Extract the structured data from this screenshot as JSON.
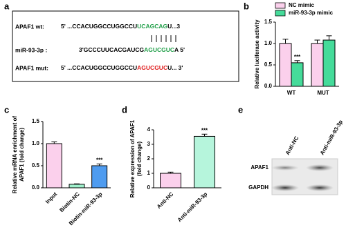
{
  "panels": {
    "a": {
      "label": "a",
      "rows": [
        {
          "name": "APAF1 wt:",
          "segments": [
            {
              "text": "5' ...CCACUGGCCUGGCCU",
              "color": "#000000"
            },
            {
              "text": "UCAGCAG",
              "color": "#22a04a"
            },
            {
              "text": "U...3",
              "color": "#000000"
            }
          ]
        },
        {
          "name": "miR-93-3p :",
          "segments": [
            {
              "text": "3'GCCCUUCACGAUCG",
              "color": "#000000"
            },
            {
              "text": "AGUCGUC",
              "color": "#22a04a"
            },
            {
              "text": "A 5'",
              "color": "#000000"
            }
          ]
        },
        {
          "name": "APAF1 mut:",
          "segments": [
            {
              "text": "5' ...CCACUGGCCUGGCCU",
              "color": "#000000"
            },
            {
              "text": "AGUCGUC",
              "color": "#e02020"
            },
            {
              "text": "U... 3'",
              "color": "#000000"
            }
          ]
        }
      ]
    },
    "e": {
      "label": "e",
      "columns": [
        "Anti-NC",
        "Anti-miR-93-3p"
      ],
      "rows": [
        "APAF1",
        "GAPDH"
      ]
    }
  },
  "chart_data": [
    {
      "type": "bar",
      "panel_label": "b",
      "ylabel": [
        "Relative luciferase activity"
      ],
      "categories": [
        "WT",
        "MUT"
      ],
      "series": [
        {
          "name": "NC mimic",
          "color": "#fbd0ec",
          "values": [
            1.0,
            1.0
          ],
          "errors": [
            0.1,
            0.08
          ]
        },
        {
          "name": "miR-93-3p mimic",
          "color": "#45db9a",
          "values": [
            0.55,
            1.08
          ],
          "errors": [
            0.05,
            0.1
          ]
        }
      ],
      "ylim": [
        0,
        1.5
      ],
      "yticks": [
        {
          "value": 0,
          "label": "0.0"
        },
        0.5,
        {
          "value": 1,
          "label": "1.0"
        },
        1.5
      ],
      "legend": "top",
      "annotations": [
        {
          "text": "***",
          "category": "WT",
          "series": "miR-93-3p mimic"
        }
      ]
    },
    {
      "type": "bar",
      "panel_label": "c",
      "ylabel": [
        "Relative mRNA enrichment of",
        "APAF1 (fold change)"
      ],
      "categories": [
        "Input",
        "Biotin-NC",
        "Biotin-miR-93-3p"
      ],
      "values": [
        1.0,
        0.08,
        0.5
      ],
      "errors": [
        0.04,
        0.01,
        0.04
      ],
      "colors": [
        "#fbd0ec",
        "#9ff0cc",
        "#4f9cf0"
      ],
      "ylim": [
        0,
        1.5
      ],
      "yticks": [
        {
          "value": 0,
          "label": "0.0"
        },
        0.5,
        {
          "value": 1,
          "label": "1.0"
        },
        1.5
      ],
      "annotations": [
        {
          "text": "***",
          "category": "Biotin-miR-93-3p"
        }
      ]
    },
    {
      "type": "bar",
      "panel_label": "d",
      "ylabel": [
        "Relative expression of APAF1",
        "(fold change)"
      ],
      "categories": [
        "Anti-NC",
        "Anti-miR-93-3p"
      ],
      "values": [
        1.0,
        3.55
      ],
      "errors": [
        0.08,
        0.15
      ],
      "colors": [
        "#fbd0ec",
        "#b6f5dc"
      ],
      "ylim": [
        0,
        4
      ],
      "yticks": [
        0,
        1,
        2,
        3,
        4
      ],
      "annotations": [
        {
          "text": "***",
          "category": "Anti-miR-93-3p"
        }
      ]
    }
  ]
}
